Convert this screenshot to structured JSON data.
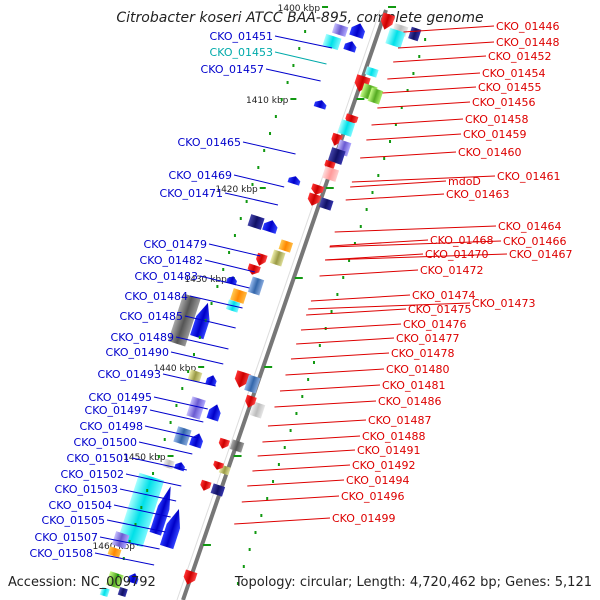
{
  "title": "Citrobacter koseri ATCC BAA-895, complete genome",
  "accession_label": "Accession:",
  "accession": "NC_009792",
  "topology_label": "Topology:",
  "topology": "circular",
  "length_label": "Length:",
  "length": "4,720,462 bp",
  "genes_label": "Genes:",
  "genes": "5,121",
  "colors": {
    "left_label": "#0000cc",
    "right_label": "#dd0000",
    "cyan_label": "#00aaaa",
    "backbone": "#888888",
    "tick": "#119911"
  },
  "ticks": [
    "1400 kbp",
    "1410 kbp",
    "1420 kbp",
    "1430 kbp",
    "1440 kbp",
    "1450 kbp",
    "1460 kbp"
  ],
  "left_labels": [
    "CKO_01451",
    "CKO_01453",
    "CKO_01457",
    "CKO_01465",
    "CKO_01469",
    "CKO_01471",
    "CKO_01479",
    "CKO_01482",
    "CKO_01483",
    "CKO_01484",
    "CKO_01485",
    "CKO_01489",
    "CKO_01490",
    "CKO_01493",
    "CKO_01495",
    "CKO_01497",
    "CKO_01498",
    "CKO_01500",
    "CKO_01501",
    "CKO_01502",
    "CKO_01503",
    "CKO_01504",
    "CKO_01505",
    "CKO_01507",
    "CKO_01508"
  ],
  "right_labels": [
    "CKO_01446",
    "CKO_01448",
    "CKO_01452",
    "CKO_01454",
    "CKO_01455",
    "CKO_01456",
    "CKO_01458",
    "CKO_01459",
    "CKO_01460",
    "CKO_01461",
    "mdoD",
    "CKO_01463",
    "CKO_01464",
    "CKO_01466",
    "CKO_01467",
    "CKO_01468",
    "CKO_01470",
    "CKO_01472",
    "CKO_01473",
    "CKO_01474",
    "CKO_01475",
    "CKO_01476",
    "CKO_01477",
    "CKO_01478",
    "CKO_01480",
    "CKO_01481",
    "CKO_01486",
    "CKO_01487",
    "CKO_01488",
    "CKO_01491",
    "CKO_01492",
    "CKO_01494",
    "CKO_01496",
    "CKO_01499"
  ]
}
